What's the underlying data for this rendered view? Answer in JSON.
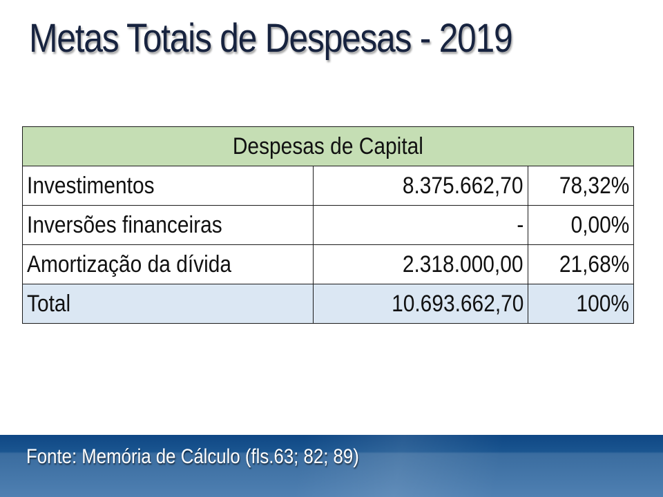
{
  "slide": {
    "title": "Metas Totais de Despesas - 2019",
    "source_note": "Fonte: Memória de Cálculo (fls.63; 82; 89)"
  },
  "table": {
    "header": "Despesas de Capital",
    "rows": [
      {
        "label": "Investimentos",
        "value": "8.375.662,70",
        "percent": "78,32%"
      },
      {
        "label": "Inversões financeiras",
        "value": "-",
        "percent": "0,00%"
      },
      {
        "label": "Amortização da dívida",
        "value": "2.318.000,00",
        "percent": "21,68%"
      }
    ],
    "total": {
      "label": "Total",
      "value": "10.693.662,70",
      "percent": "100%"
    }
  },
  "colors": {
    "title": "#17233f",
    "header_bg": "#c5deb4",
    "total_bg": "#dbe7f3",
    "footer_dark": "#0f4784",
    "footer_light": "#4f80b2"
  }
}
